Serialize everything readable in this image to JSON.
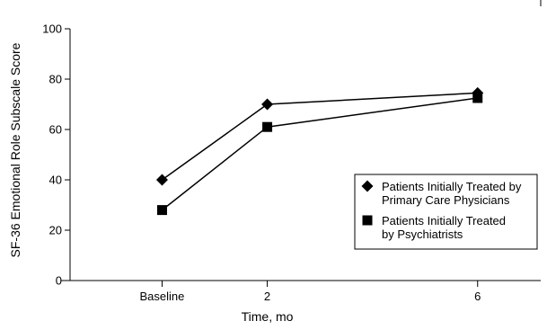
{
  "chart_data": {
    "type": "line",
    "categories": [
      "Baseline",
      "2",
      "6"
    ],
    "x_positions": [
      0,
      2,
      6
    ],
    "xlim": [
      -1.75,
      7.2
    ],
    "xlabel": "Time, mo",
    "ylabel": "SF-36 Emotional Role Subscale Score",
    "ylim": [
      0,
      100
    ],
    "yticks": [
      0,
      20,
      40,
      60,
      80,
      100
    ],
    "grid": false,
    "legend_position": "right",
    "series": [
      {
        "name": "Patients Initially Treated by Primary Care Physicians",
        "legend_lines": [
          "Patients Initially Treated by",
          "Primary Care Physicians"
        ],
        "marker": "diamond",
        "color": "#000000",
        "values": [
          40,
          70,
          74.5
        ]
      },
      {
        "name": "Patients Initially Treated by Psychiatrists",
        "legend_lines": [
          "Patients Initially Treated",
          "by Psychiatrists"
        ],
        "marker": "square",
        "color": "#000000",
        "values": [
          28,
          61,
          72.5
        ]
      }
    ]
  }
}
